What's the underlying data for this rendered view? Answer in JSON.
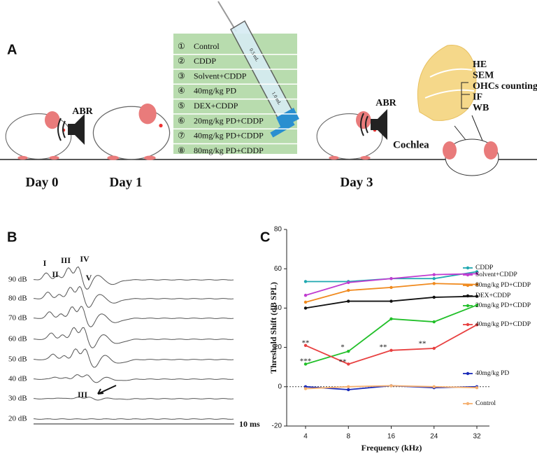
{
  "panel_a": {
    "label": "A",
    "abr_left": "ABR",
    "abr_right": "ABR",
    "days": [
      "Day 0",
      "Day 1",
      "Day 3"
    ],
    "groups": [
      {
        "num": "①",
        "name": "Control"
      },
      {
        "num": "②",
        "name": "CDDP"
      },
      {
        "num": "③",
        "name": "Solvent+CDDP"
      },
      {
        "num": "④",
        "name": "40mg/kg PD"
      },
      {
        "num": "⑤",
        "name": "DEX+CDDP"
      },
      {
        "num": "⑥",
        "name": "20mg/kg PD+CDDP"
      },
      {
        "num": "⑦",
        "name": "40mg/kg PD+CDDP"
      },
      {
        "num": "⑧",
        "name": "80mg/kg PD+CDDP"
      }
    ],
    "syringe_marks": [
      "0.5 mL",
      "1.0 mL"
    ],
    "cochlea": "Cochlea",
    "assays": [
      "HE",
      "SEM",
      "OHCs counting",
      "IF",
      "WB"
    ]
  },
  "panel_b": {
    "label": "B",
    "levels": [
      "90 dB",
      "80 dB",
      "70 dB",
      "60 dB",
      "50 dB",
      "40 dB",
      "30 dB",
      "20 dB"
    ],
    "waves": [
      "I",
      "II",
      "III",
      "IV",
      "V"
    ],
    "arrow_label": "III",
    "time_label": "10 ms"
  },
  "chart_data": {
    "type": "line",
    "panel_label": "C",
    "xlabel": "Frequency (kHz)",
    "ylabel": "Threshold Shift (dB SPL)",
    "categories": [
      "4",
      "8",
      "16",
      "24",
      "32"
    ],
    "ylim": [
      -20,
      80
    ],
    "yticks": [
      -20,
      0,
      20,
      40,
      60,
      80
    ],
    "series": [
      {
        "name": "CDDP",
        "color": "#1fa8b0",
        "values": [
          53.5,
          53.5,
          55,
          55,
          58.5
        ]
      },
      {
        "name": "Solvent+CDDP",
        "color": "#c03cd0",
        "values": [
          46.5,
          53,
          55,
          57,
          57.5
        ]
      },
      {
        "name": "80mg/kg PD+CDDP",
        "color": "#f08a1e",
        "values": [
          43,
          49,
          50.5,
          52.5,
          52
        ]
      },
      {
        "name": "DEX+CDDP",
        "color": "#111111",
        "values": [
          40,
          43.5,
          43.5,
          45.5,
          46
        ]
      },
      {
        "name": "20mg/kg PD+CDDP",
        "color": "#22c02a",
        "values": [
          11.5,
          18,
          34.5,
          33,
          41.5
        ]
      },
      {
        "name": "40mg/kg PD+CDDP",
        "color": "#e84040",
        "values": [
          21,
          11.5,
          18.5,
          19.5,
          31.5
        ]
      },
      {
        "name": "40mg/kg PD",
        "color": "#1a2ab8",
        "values": [
          0,
          -1.5,
          0.5,
          -0.5,
          0
        ]
      },
      {
        "name": "Control",
        "color": "#f5b070",
        "values": [
          -1,
          0,
          0.5,
          0,
          -0.5
        ]
      }
    ],
    "annotations": [
      "**",
      "***",
      "*",
      "**",
      "**",
      "**"
    ]
  }
}
